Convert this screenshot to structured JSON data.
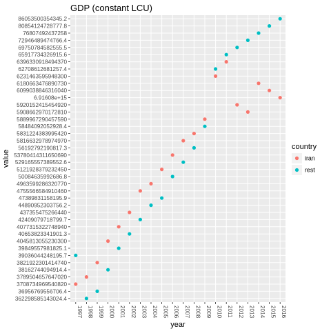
{
  "chart_data": {
    "type": "scatter",
    "title": "GDP (constant LCU)",
    "xlabel": "year",
    "ylabel": "value",
    "x_categories": [
      "1997",
      "1998",
      "1999",
      "2000",
      "2001",
      "2002",
      "2003",
      "2004",
      "2005",
      "2006",
      "2007",
      "2008",
      "2009",
      "2010",
      "2011",
      "2012",
      "2013",
      "2014",
      "2015",
      "2016"
    ],
    "y_categories": [
      "3622985851430​24.4",
      "369567695567​06.4",
      "37087349695408​20",
      "3789504657647​020",
      "3816274409491​4.4",
      "3821922301414​740",
      "3903604424819​5.7",
      "3984955798182​5.1",
      "4045813055230​300",
      "4065382334190​1.3",
      "4077315322748​940",
      "4240907971879​9.7",
      "4373554752664​40",
      "4489095230375​6.2",
      "4738983115819​5.9",
      "4755566584910​460",
      "4963599286320​770",
      "5008463599268​6.8",
      "5121928379232​450",
      "5291655573895​52.6",
      "5378041431165​0690",
      "5619279219081​7.3",
      "5816632978974​970",
      "5831224383995​420",
      "5848409205292​8.4",
      "5889967290457​590",
      "5908662970172​810",
      "5920152415454​920",
      "6.91608e+15",
      "6099038846316​040",
      "6180663476890​730",
      "6231463595948​300",
      "6270861268125​7.4",
      "6396330918494​370",
      "6591773432691​5.6",
      "6975078458255​5.5",
      "7294648947476​6.4",
      "7680749243725​8",
      "8085412472877​7.8",
      "8605350035434​5.2"
    ],
    "series": [
      {
        "name": "iran",
        "color": "#F8766D",
        "points": [
          {
            "x": "1997",
            "y": "37087349695408​20"
          },
          {
            "x": "1998",
            "y": "3789504657647​020"
          },
          {
            "x": "1999",
            "y": "3821922301414​740"
          },
          {
            "x": "2000",
            "y": "4045813055230​300"
          },
          {
            "x": "2001",
            "y": "4077315322748​940"
          },
          {
            "x": "2002",
            "y": "4373554752664​40"
          },
          {
            "x": "2003",
            "y": "4755566584910​460"
          },
          {
            "x": "2004",
            "y": "4963599286320​770"
          },
          {
            "x": "2005",
            "y": "5121928379232​450"
          },
          {
            "x": "2006",
            "y": "5378041431165​0690"
          },
          {
            "x": "2007",
            "y": "5816632978974​970"
          },
          {
            "x": "2008",
            "y": "5831224383995​420"
          },
          {
            "x": "2009",
            "y": "5889967290457​590"
          },
          {
            "x": "2010",
            "y": "6231463595948​300"
          },
          {
            "x": "2011",
            "y": "6396330918494​370"
          },
          {
            "x": "2012",
            "y": "5920152415454​920"
          },
          {
            "x": "2013",
            "y": "5908662970172​810"
          },
          {
            "x": "2014",
            "y": "6180663476890​730"
          },
          {
            "x": "2015",
            "y": "6099038846316​040"
          },
          {
            "x": "2016",
            "y": "6.91608e+15"
          }
        ]
      },
      {
        "name": "rest",
        "color": "#00BFC4",
        "points": [
          {
            "x": "1997",
            "y": "3903604424819​5.7"
          },
          {
            "x": "1998",
            "y": "3622985851430​24.4"
          },
          {
            "x": "1999",
            "y": "369567695567​06.4"
          },
          {
            "x": "2000",
            "y": "3816274409491​4.4"
          },
          {
            "x": "2001",
            "y": "3984955798182​5.1"
          },
          {
            "x": "2002",
            "y": "4065382334190​1.3"
          },
          {
            "x": "2003",
            "y": "4240907971879​9.7"
          },
          {
            "x": "2004",
            "y": "4489095230375​6.2"
          },
          {
            "x": "2005",
            "y": "4738983115819​5.9"
          },
          {
            "x": "2006",
            "y": "5008463599268​6.8"
          },
          {
            "x": "2007",
            "y": "5291655573895​52.6"
          },
          {
            "x": "2008",
            "y": "5619279219081​7.3"
          },
          {
            "x": "2009",
            "y": "5848409205292​8.4"
          },
          {
            "x": "2010",
            "y": "6270861268125​7.4"
          },
          {
            "x": "2011",
            "y": "6591773432691​5.6"
          },
          {
            "x": "2012",
            "y": "6975078458255​5.5"
          },
          {
            "x": "2013",
            "y": "7294648947476​6.4"
          },
          {
            "x": "2014",
            "y": "7680749243725​8"
          },
          {
            "x": "2015",
            "y": "8085412472877​7.8"
          },
          {
            "x": "2016",
            "y": "8605350035434​5.2"
          }
        ]
      }
    ],
    "legend": {
      "title": "country",
      "position": "right"
    },
    "grid": true,
    "panel_background": "#EBEBEB",
    "grid_color": "#FFFFFF"
  }
}
